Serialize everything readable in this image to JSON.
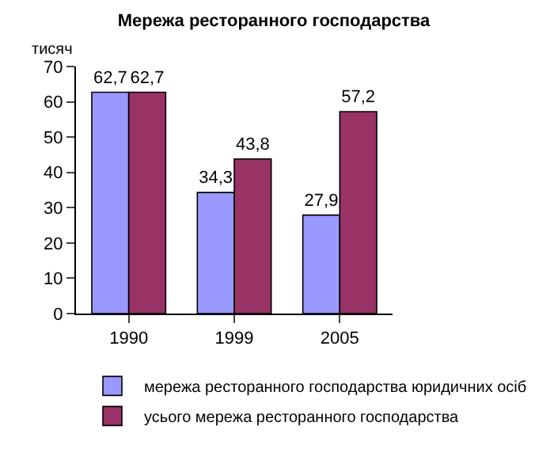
{
  "chart_data": {
    "type": "bar",
    "title": "Мережа ресторанного господарства",
    "ylabel": "тисяч",
    "categories": [
      "1990",
      "1999",
      "2005"
    ],
    "series": [
      {
        "name": "мережа ресторанного господарства юридичних осіб",
        "color": "#9999ff",
        "values": [
          62.7,
          34.3,
          27.9
        ],
        "value_labels": [
          "62,7",
          "34,3",
          "27,9"
        ]
      },
      {
        "name": "усього мережа ресторанного господарства",
        "color": "#993366",
        "values": [
          62.7,
          43.8,
          57.2
        ],
        "value_labels": [
          "62,7",
          "43,8",
          "57,2"
        ]
      }
    ],
    "ylim": [
      0,
      70
    ],
    "yticks": [
      0,
      10,
      20,
      30,
      40,
      50,
      60,
      70
    ],
    "grid": false,
    "legend": "bottom"
  }
}
